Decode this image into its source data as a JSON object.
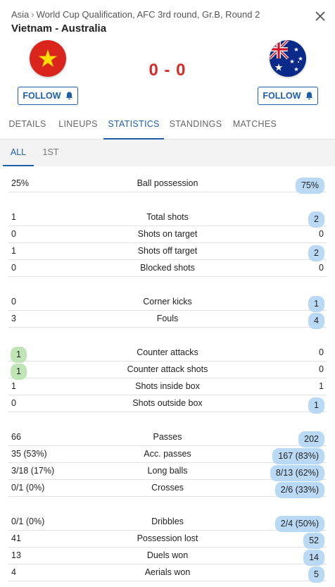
{
  "breadcrumb": {
    "region": "Asia",
    "separator": "›",
    "competition": "World Cup Qualification, AFC 3rd round, Gr.B, Round 2"
  },
  "match": {
    "title": "Vietnam - Australia",
    "home_team": "Vietnam",
    "away_team": "Australia",
    "score": "0 - 0"
  },
  "colors": {
    "accent": "#1f5fa8",
    "score": "#d62b2b",
    "highlight_blue": "#b9d9f5",
    "highlight_green": "#bfe5b6"
  },
  "follow": {
    "home_label": "FOLLOW",
    "away_label": "FOLLOW",
    "icon": "bell-icon"
  },
  "tabs": [
    "DETAILS",
    "LINEUPS",
    "STATISTICS",
    "STANDINGS",
    "MATCHES"
  ],
  "active_tab": "STATISTICS",
  "subtabs": [
    "ALL",
    "1ST"
  ],
  "active_subtab": "ALL",
  "stats": [
    {
      "home": "25%",
      "label": "Ball possession",
      "away": "75%",
      "highlight": "away-blue"
    },
    {
      "home": "1",
      "label": "Total shots",
      "away": "2",
      "highlight": "away-blue"
    },
    {
      "home": "0",
      "label": "Shots on target",
      "away": "0",
      "highlight": "none"
    },
    {
      "home": "1",
      "label": "Shots off target",
      "away": "2",
      "highlight": "away-blue"
    },
    {
      "home": "0",
      "label": "Blocked shots",
      "away": "0",
      "highlight": "none"
    },
    {
      "home": "0",
      "label": "Corner kicks",
      "away": "1",
      "highlight": "away-blue"
    },
    {
      "home": "3",
      "label": "Fouls",
      "away": "4",
      "highlight": "away-blue"
    },
    {
      "home": "1",
      "label": "Counter attacks",
      "away": "0",
      "highlight": "home-green"
    },
    {
      "home": "1",
      "label": "Counter attack shots",
      "away": "0",
      "highlight": "home-green"
    },
    {
      "home": "1",
      "label": "Shots inside box",
      "away": "1",
      "highlight": "none"
    },
    {
      "home": "0",
      "label": "Shots outside box",
      "away": "1",
      "highlight": "away-blue"
    },
    {
      "home": "66",
      "label": "Passes",
      "away": "202",
      "highlight": "away-blue"
    },
    {
      "home": "35 (53%)",
      "label": "Acc. passes",
      "away": "167 (83%)",
      "highlight": "away-blue"
    },
    {
      "home": "3/18 (17%)",
      "label": "Long balls",
      "away": "8/13 (62%)",
      "highlight": "away-blue"
    },
    {
      "home": "0/1 (0%)",
      "label": "Crosses",
      "away": "2/6 (33%)",
      "highlight": "away-blue"
    },
    {
      "home": "0/1 (0%)",
      "label": "Dribbles",
      "away": "2/4 (50%)",
      "highlight": "away-blue"
    },
    {
      "home": "41",
      "label": "Possession lost",
      "away": "52",
      "highlight": "away-blue"
    },
    {
      "home": "13",
      "label": "Duels won",
      "away": "14",
      "highlight": "away-blue"
    },
    {
      "home": "4",
      "label": "Aerials won",
      "away": "5",
      "highlight": "away-blue"
    }
  ]
}
